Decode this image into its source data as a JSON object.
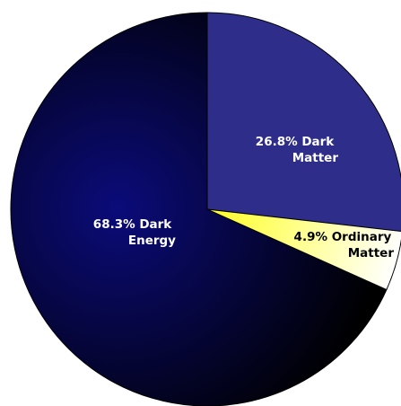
{
  "chart_data": {
    "type": "pie",
    "slices": [
      {
        "label": "Dark Energy",
        "value": 68.3,
        "label_lines": [
          "68.3% Dark",
          "Energy"
        ],
        "color": "#0a0a6e",
        "gradient": [
          "#0b0b7a",
          "#000000"
        ],
        "text_color": "#ffffff"
      },
      {
        "label": "Dark Matter",
        "value": 26.8,
        "label_lines": [
          "26.8% Dark",
          "Matter"
        ],
        "color": "#2e2e8a",
        "text_color": "#ffffff"
      },
      {
        "label": "Ordinary Matter",
        "value": 4.9,
        "label_lines": [
          "4.9% Ordinary",
          "Matter"
        ],
        "color": "#ffff66",
        "gradient": [
          "#ffff33",
          "#ffffff"
        ],
        "text_color": "#000000"
      }
    ]
  }
}
